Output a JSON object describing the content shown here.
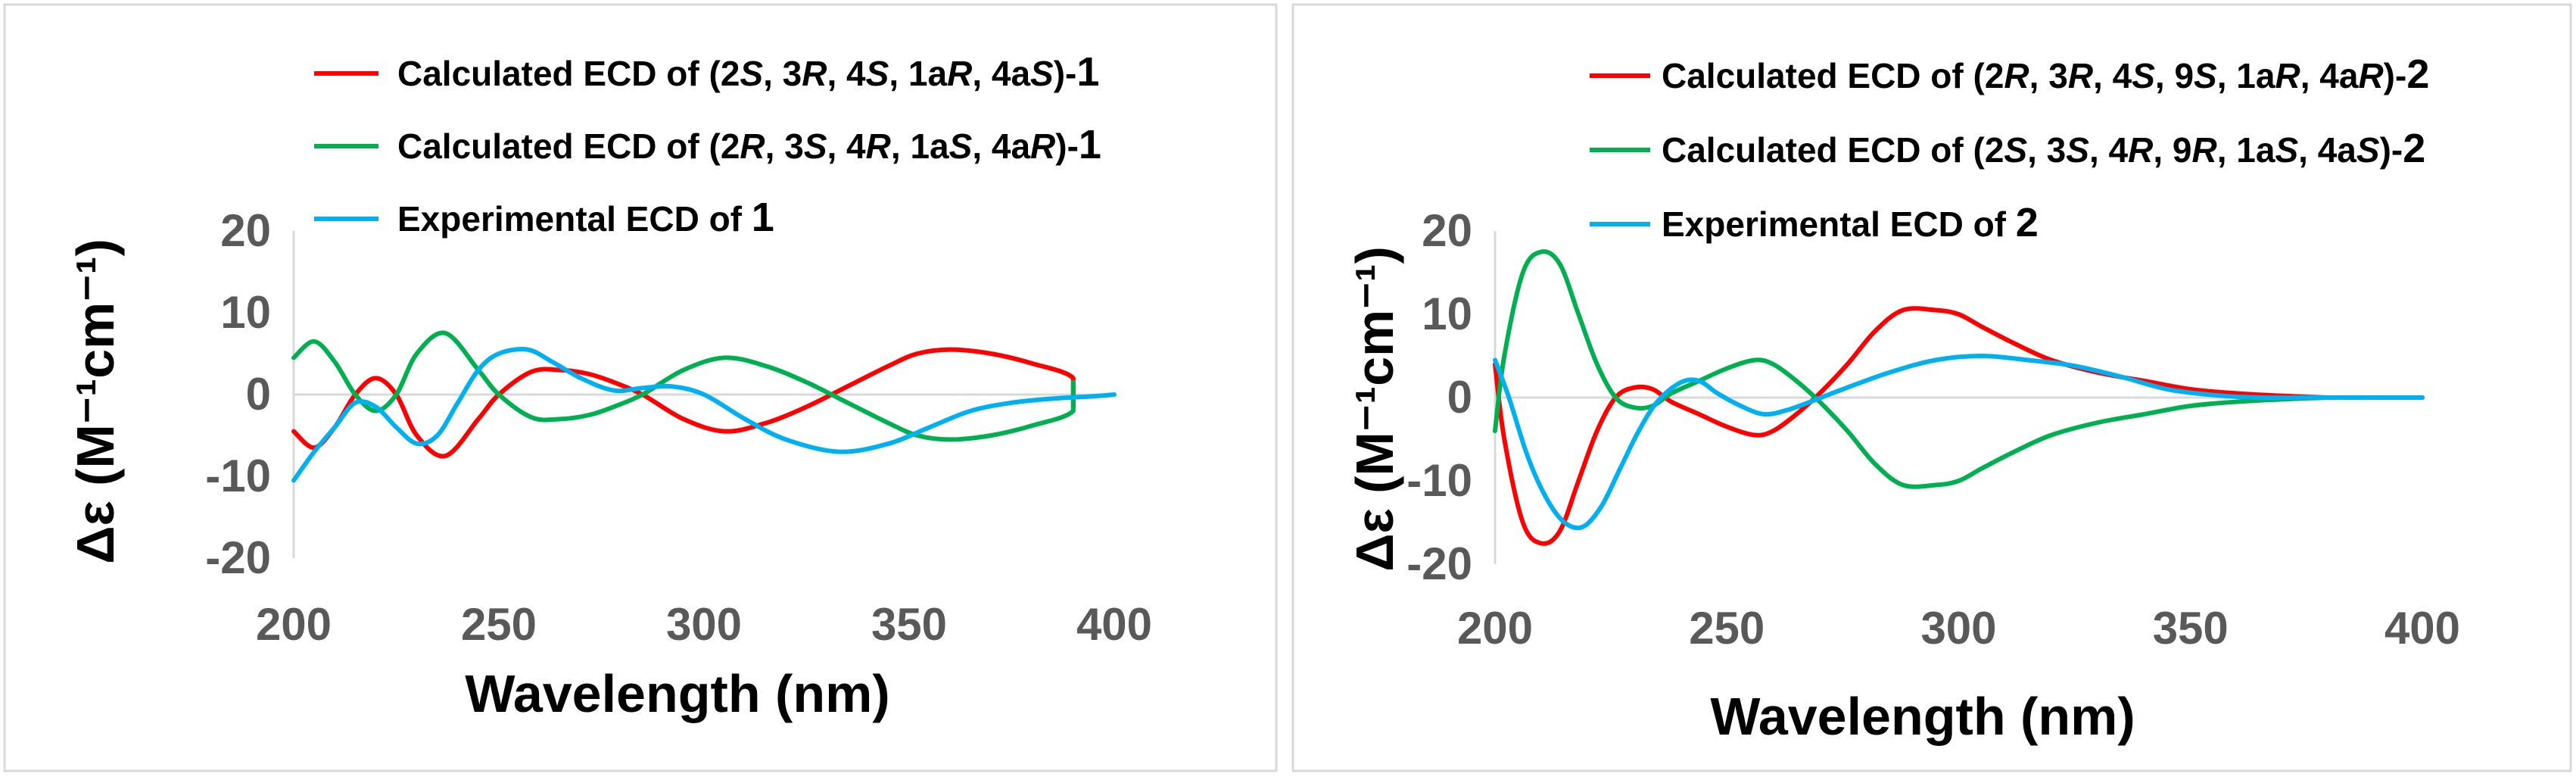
{
  "chart_data": [
    {
      "type": "line",
      "ylabel": "Δε (M⁻¹cm⁻¹)",
      "xlabel": "Wavelength (nm)",
      "xlim": [
        200,
        400
      ],
      "ylim": [
        -20,
        20
      ],
      "xticks": [
        200,
        250,
        300,
        350,
        400
      ],
      "yticks": [
        20,
        10,
        0,
        -10,
        -20
      ],
      "grid": false,
      "legend_position": "top-right",
      "series": [
        {
          "name": "Calculated ECD of (2S, 3R, 4S, 1aR, 4aS)-1",
          "legend_parts": [
            {
              "t": "Calculated ECD of (2",
              "i": false
            },
            {
              "t": "S",
              "i": true
            },
            {
              "t": ", 3",
              "i": false
            },
            {
              "t": "R",
              "i": true
            },
            {
              "t": ", 4",
              "i": false
            },
            {
              "t": "S",
              "i": true
            },
            {
              "t": ", 1a",
              "i": false
            },
            {
              "t": "R",
              "i": true
            },
            {
              "t": ", 4a",
              "i": false
            },
            {
              "t": "S",
              "i": true
            },
            {
              "t": ")-",
              "i": false
            },
            {
              "t": "1",
              "i": false,
              "n": true
            }
          ],
          "color": "#ff0000",
          "x": [
            200,
            205,
            210,
            215,
            220,
            225,
            230,
            237,
            245,
            250,
            258,
            265,
            272,
            278,
            285,
            295,
            305,
            315,
            325,
            335,
            345,
            352,
            360,
            370,
            380,
            390,
            390
          ],
          "y": [
            -4.5,
            -6.5,
            -4,
            0,
            2,
            0,
            -5,
            -7.5,
            -3,
            0,
            2.8,
            3,
            2.5,
            1.5,
            0,
            -3,
            -4.5,
            -3.5,
            -1.5,
            1,
            3.5,
            5,
            5.5,
            5,
            3.8,
            2,
            -1.5
          ]
        },
        {
          "name": "Calculated ECD of (2R, 3S, 4R, 1aS, 4aR)-1",
          "legend_parts": [
            {
              "t": "Calculated ECD of (2",
              "i": false
            },
            {
              "t": "R",
              "i": true
            },
            {
              "t": ", 3",
              "i": false
            },
            {
              "t": "S",
              "i": true
            },
            {
              "t": ", 4",
              "i": false
            },
            {
              "t": "R",
              "i": true
            },
            {
              "t": ", 1a",
              "i": false
            },
            {
              "t": "S",
              "i": true
            },
            {
              "t": ", 4a",
              "i": false
            },
            {
              "t": "R",
              "i": true
            },
            {
              "t": ")-",
              "i": false
            },
            {
              "t": "1",
              "i": false,
              "n": true
            }
          ],
          "color": "#00b050",
          "x": [
            200,
            205,
            210,
            215,
            220,
            225,
            230,
            237,
            245,
            250,
            258,
            265,
            272,
            278,
            285,
            295,
            305,
            315,
            325,
            335,
            345,
            352,
            360,
            370,
            380,
            390,
            390
          ],
          "y": [
            4.5,
            6.5,
            4,
            0,
            -2,
            0,
            5,
            7.5,
            3,
            0,
            -2.8,
            -3,
            -2.5,
            -1.5,
            0,
            3,
            4.5,
            3.5,
            1.5,
            -1,
            -3.5,
            -5,
            -5.5,
            -5,
            -3.8,
            -2,
            1.5
          ]
        },
        {
          "name": "Experimental ECD of 1",
          "legend_parts": [
            {
              "t": "Experimental  ECD of  ",
              "i": false
            },
            {
              "t": "1",
              "i": false,
              "n": true
            }
          ],
          "color": "#00b0f0",
          "x": [
            200,
            205,
            210,
            215,
            220,
            225,
            230,
            235,
            240,
            245,
            250,
            257,
            263,
            270,
            278,
            285,
            292,
            300,
            310,
            320,
            333,
            345,
            355,
            365,
            375,
            385,
            395,
            400
          ],
          "y": [
            -10.5,
            -7,
            -4,
            -1,
            -1.5,
            -4,
            -6,
            -5,
            -1,
            3,
            5,
            5.5,
            4,
            2,
            0.5,
            0.8,
            1,
            0,
            -3,
            -5.5,
            -7,
            -6,
            -4,
            -2,
            -1,
            -0.5,
            -0.2,
            0
          ]
        }
      ]
    },
    {
      "type": "line",
      "ylabel": "Δε (M⁻¹cm⁻¹)",
      "xlabel": "Wavelength (nm)",
      "xlim": [
        200,
        400
      ],
      "ylim": [
        -20,
        20
      ],
      "xticks": [
        200,
        250,
        300,
        350,
        400
      ],
      "yticks": [
        20,
        10,
        0,
        -10,
        -20
      ],
      "grid": false,
      "legend_position": "top-right",
      "series": [
        {
          "name": "Calculated ECD of (2R, 3R, 4S, 9S, 1aR, 4aR)-2",
          "legend_parts": [
            {
              "t": "Calculated ECD of (2",
              "i": false
            },
            {
              "t": "R",
              "i": true
            },
            {
              "t": ", 3",
              "i": false
            },
            {
              "t": "R",
              "i": true
            },
            {
              "t": ", 4",
              "i": false
            },
            {
              "t": "S",
              "i": true
            },
            {
              "t": ", 9",
              "i": false
            },
            {
              "t": "S",
              "i": true
            },
            {
              "t": ", 1a",
              "i": false
            },
            {
              "t": "R",
              "i": true
            },
            {
              "t": ", 4a",
              "i": false
            },
            {
              "t": "R",
              "i": true
            },
            {
              "t": ")-",
              "i": false
            },
            {
              "t": "2",
              "i": false,
              "n": true
            }
          ],
          "color": "#ff0000",
          "x": [
            200,
            202,
            206,
            210,
            214,
            218,
            222,
            226,
            230,
            234,
            238,
            244,
            250,
            256,
            260,
            265,
            270,
            276,
            282,
            288,
            295,
            300,
            305,
            312,
            320,
            330,
            340,
            350,
            360,
            370,
            380,
            390,
            400
          ],
          "y": [
            4,
            -5,
            -15,
            -17.5,
            -16,
            -10,
            -4,
            0,
            1.2,
            1,
            -0.5,
            -2,
            -3.5,
            -4.5,
            -4,
            -2,
            0.5,
            4,
            8,
            10.5,
            10.5,
            10,
            8.5,
            6.5,
            4.5,
            3,
            2,
            1,
            0.5,
            0.2,
            0,
            0,
            0
          ]
        },
        {
          "name": "Calculated ECD of (2S, 3S, 4R, 9R, 1aS, 4aS)-2",
          "legend_parts": [
            {
              "t": "Calculated ECD of (2",
              "i": false
            },
            {
              "t": "S",
              "i": true
            },
            {
              "t": ", 3",
              "i": false
            },
            {
              "t": "S",
              "i": true
            },
            {
              "t": ", 4",
              "i": false
            },
            {
              "t": "R",
              "i": true
            },
            {
              "t": ", 9",
              "i": false
            },
            {
              "t": "R",
              "i": true
            },
            {
              "t": ", 1a",
              "i": false
            },
            {
              "t": "S",
              "i": true
            },
            {
              "t": ", 4a",
              "i": false
            },
            {
              "t": "S",
              "i": true
            },
            {
              "t": ")-",
              "i": false
            },
            {
              "t": "2",
              "i": false,
              "n": true
            }
          ],
          "color": "#00b050",
          "x": [
            200,
            202,
            206,
            210,
            214,
            218,
            222,
            226,
            230,
            234,
            238,
            244,
            250,
            256,
            260,
            265,
            270,
            276,
            282,
            288,
            295,
            300,
            305,
            312,
            320,
            330,
            340,
            350,
            360,
            370,
            380,
            390,
            400
          ],
          "y": [
            -4,
            5,
            15,
            17.5,
            16,
            10,
            4,
            0,
            -1.2,
            -1,
            0.5,
            2,
            3.5,
            4.5,
            4,
            2,
            -0.5,
            -4,
            -8,
            -10.5,
            -10.5,
            -10,
            -8.5,
            -6.5,
            -4.5,
            -3,
            -2,
            -1,
            -0.5,
            -0.2,
            0,
            0,
            0
          ]
        },
        {
          "name": "Experimental ECD of 2",
          "legend_parts": [
            {
              "t": "Experimental  ECD of  ",
              "i": false
            },
            {
              "t": "2",
              "i": false,
              "n": true
            }
          ],
          "color": "#00b0f0",
          "x": [
            200,
            203,
            207,
            211,
            215,
            219,
            223,
            227,
            231,
            235,
            240,
            244,
            248,
            253,
            258,
            263,
            268,
            275,
            285,
            295,
            305,
            315,
            325,
            335,
            345,
            355,
            365,
            375,
            385,
            395,
            400
          ],
          "y": [
            4.5,
            0,
            -7,
            -12,
            -15,
            -15.5,
            -13,
            -8.5,
            -4,
            -0.5,
            1.8,
            2,
            0.5,
            -1,
            -2,
            -1.5,
            -0.5,
            1,
            3,
            4.5,
            5,
            4.5,
            3.8,
            2.5,
            1,
            0.3,
            0,
            0,
            0,
            0,
            0
          ]
        }
      ]
    }
  ]
}
